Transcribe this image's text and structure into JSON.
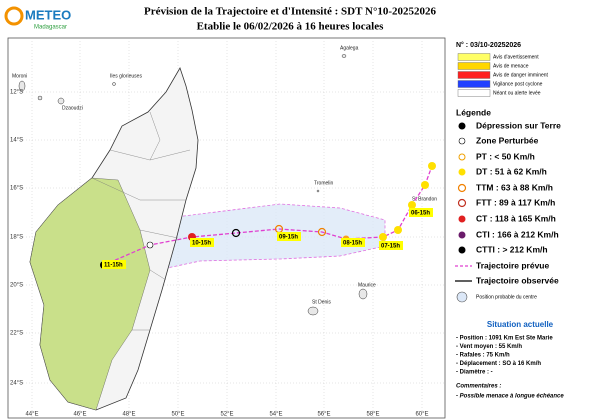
{
  "header": {
    "logo_title": "METEO",
    "logo_subtitle": "Madagascar",
    "title": "Prévision de la Trajectoire et d'Intensité : SDT N°10-20252026",
    "subtitle": "Etablie le 06/02/2026 à 16 heures locales"
  },
  "bulletin_number": "N° : 03/10-20252026",
  "alert_legend": [
    {
      "label": "Avis d'avertissement",
      "color": "#ffff66"
    },
    {
      "label": "Avis de menace",
      "color": "#ffd700"
    },
    {
      "label": "Avis de danger imminent",
      "color": "#ff2020"
    },
    {
      "label": "Vigilance post cyclone",
      "color": "#2040ff"
    },
    {
      "label": "Néant ou alerte levée",
      "color": "#ffffff"
    }
  ],
  "legend": {
    "title": "Légende",
    "items": [
      "Dépression sur Terre",
      "Zone Perturbée",
      "PT : < 50 Km/h",
      "DT : 51 à 62 Km/h",
      "TTM : 63 à 88 Km/h",
      "FTT : 89 à 117 Km/h",
      "CT : 118 à 165 Km/h",
      "CTI : 166 à 212 Km/h",
      "CTTI : > 212 Km/h",
      "Trajectoire prévue",
      "Trajectoire observée",
      "Position probable du centre"
    ]
  },
  "map": {
    "lon_labels": [
      "44°E",
      "46°E",
      "48°E",
      "50°E",
      "52°E",
      "54°E",
      "56°E",
      "58°E",
      "60°E"
    ],
    "lat_labels": [
      "12°S",
      "14°S",
      "16°S",
      "18°S",
      "20°S",
      "22°S",
      "24°S"
    ],
    "places": [
      "Moroni",
      "Dzaoudzi",
      "Iles glorieuses",
      "Agalega",
      "Tromelin",
      "St Brandon",
      "St Denis",
      "Maurice"
    ],
    "track_labels": [
      "11-15h",
      "10-15h",
      "09-15h",
      "08-15h",
      "07-15h",
      "06-15h"
    ]
  },
  "situation": {
    "title": "Situation actuelle",
    "lines": [
      "- Position : 1091 Km Est Ste Marie",
      "- Vent moyen : 55 Km/h",
      "- Rafales : 75 Km/h",
      "- Déplacement : SO à 16 Km/h",
      "- Diamètre : -"
    ]
  },
  "comments": {
    "title": "Commentaires :",
    "lines": [
      "- Possible menace à longue échéance"
    ]
  }
}
